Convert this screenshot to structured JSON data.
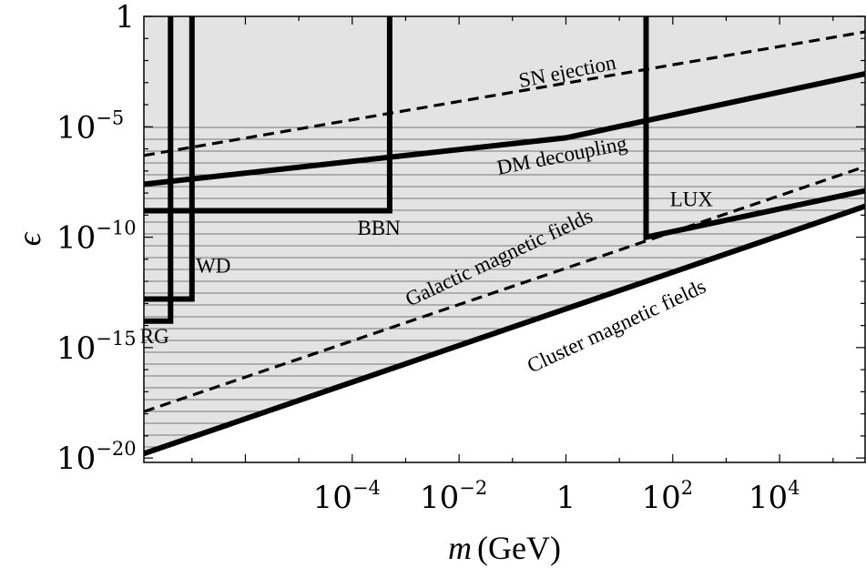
{
  "chart_data": {
    "type": "line",
    "xlabel_var": "m",
    "xlabel_unit": "(GeV)",
    "ylabel": "ϵ",
    "x_log": true,
    "y_log": true,
    "xlim_log10": [
      -7.9,
      5.6
    ],
    "ylim_log10": [
      -20.2,
      0
    ],
    "x_ticks": [
      {
        "exp": -4,
        "label": "10",
        "sup": "−4"
      },
      {
        "exp": -2,
        "label": "10",
        "sup": "−2"
      },
      {
        "exp": 0,
        "label": "1",
        "sup": ""
      },
      {
        "exp": 2,
        "label": "10",
        "sup": "2"
      },
      {
        "exp": 4,
        "label": "10",
        "sup": "4"
      }
    ],
    "y_ticks": [
      {
        "exp": 0,
        "label": "1",
        "sup": ""
      },
      {
        "exp": -5,
        "label": "10",
        "sup": "−5"
      },
      {
        "exp": -10,
        "label": "10",
        "sup": "−10"
      },
      {
        "exp": -15,
        "label": "10",
        "sup": "−15"
      },
      {
        "exp": -20,
        "label": "10",
        "sup": "−20"
      }
    ],
    "grid": false,
    "allowed_region": "light gray shading above the cluster magnetic fields line, with horizontal hatch lines",
    "colors": {
      "shade": "#e3e3e3",
      "hatch": "#777777",
      "line": "#000000"
    },
    "series": [
      {
        "name": "SN ejection",
        "style": "dashed",
        "x_log10": [
          -7.9,
          5.6
        ],
        "y_log10": [
          -6.3,
          -0.7
        ]
      },
      {
        "name": "DM decoupling",
        "style": "solid",
        "x_log10": [
          -7.9,
          0,
          5.6
        ],
        "y_log10": [
          -7.6,
          -5.5,
          -2.6
        ]
      },
      {
        "name": "Galactic magnetic fields",
        "style": "dashed",
        "x_log10": [
          -7.9,
          5.6
        ],
        "y_log10": [
          -17.9,
          -6.8
        ]
      },
      {
        "name": "Cluster magnetic fields",
        "style": "solid",
        "x_log10": [
          -7.9,
          5.6
        ],
        "y_log10": [
          -19.8,
          -8.6
        ]
      },
      {
        "name": "BBN",
        "style": "solid",
        "x_log10": [
          -7.9,
          -3.3,
          -3.3
        ],
        "y_log10": [
          -8.8,
          -8.8,
          0
        ]
      },
      {
        "name": "WD",
        "style": "solid",
        "x_log10": [
          -7.9,
          -7.0,
          -7.0
        ],
        "y_log10": [
          -12.8,
          -12.8,
          0
        ]
      },
      {
        "name": "RG",
        "style": "solid",
        "x_log10": [
          -7.9,
          -7.4,
          -7.4
        ],
        "y_log10": [
          -13.8,
          -13.8,
          0
        ]
      },
      {
        "name": "LUX",
        "style": "solid",
        "x_log10": [
          1.5,
          1.5,
          5.6
        ],
        "y_log10": [
          0,
          -10.0,
          -7.9
        ]
      }
    ],
    "annotations": [
      {
        "text": "SN ejection",
        "x_log10": 0.05,
        "y_log10": -2.8,
        "angle": -11
      },
      {
        "text": "DM decoupling",
        "x_log10": -0.05,
        "y_log10": -6.6,
        "angle": -11
      },
      {
        "text": "BBN",
        "x_log10": -3.5,
        "y_log10": -9.9,
        "angle": 0
      },
      {
        "text": "WD",
        "x_log10": -6.6,
        "y_log10": -11.6,
        "angle": 0
      },
      {
        "text": "RG",
        "x_log10": -7.7,
        "y_log10": -14.8,
        "angle": 0
      },
      {
        "text": "LUX",
        "x_log10": 2.35,
        "y_log10": -8.6,
        "angle": 0
      },
      {
        "text": "Galactic magnetic fields",
        "x_log10": -1.2,
        "y_log10": -11.2,
        "angle": -25
      },
      {
        "text": "Cluster magnetic fields",
        "x_log10": 1.0,
        "y_log10": -14.3,
        "angle": -25
      }
    ]
  }
}
